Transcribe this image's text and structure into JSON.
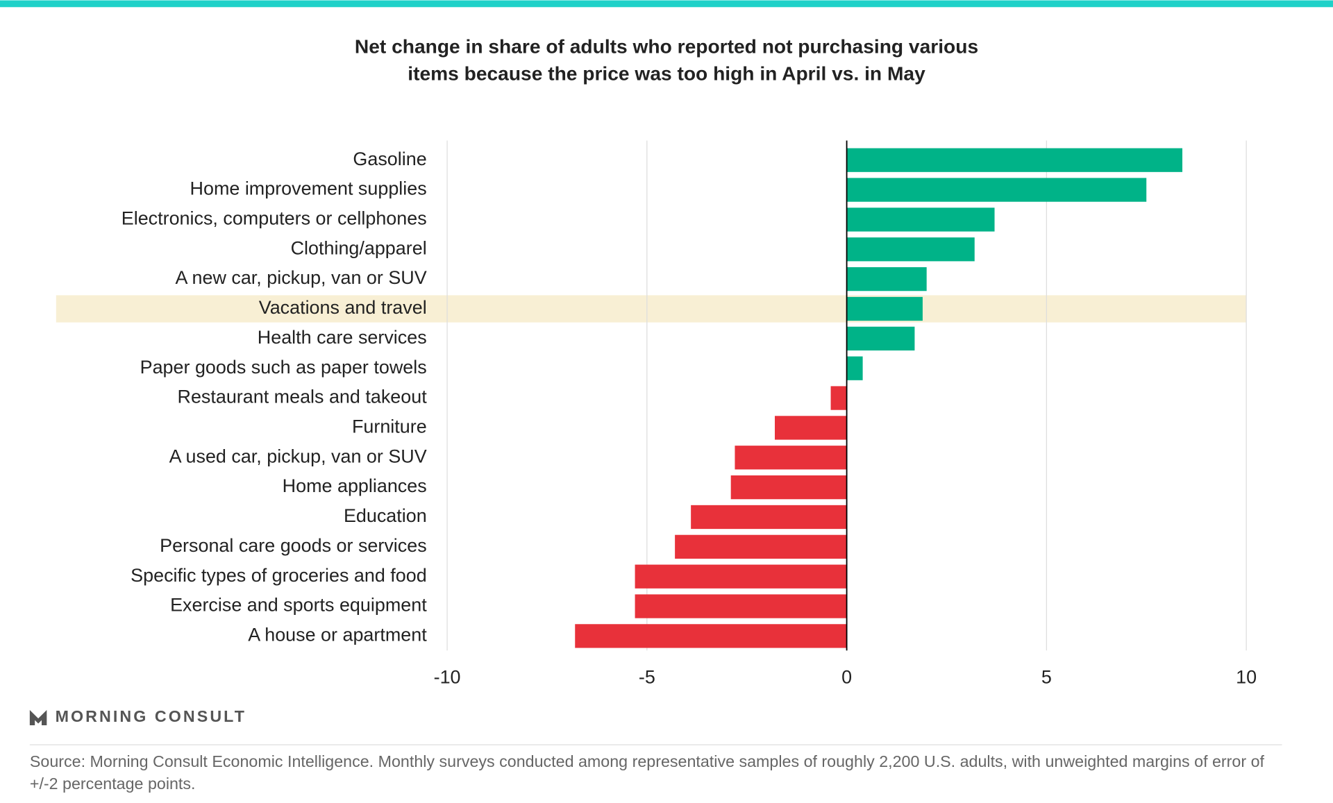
{
  "chart_data": {
    "type": "bar",
    "orientation": "horizontal",
    "title": "Net change in share of adults who reported not purchasing various items because the price was too high in April vs. in May",
    "categories": [
      "Gasoline",
      "Home improvement supplies",
      "Electronics, computers or cellphones",
      "Clothing/apparel",
      "A new car, pickup, van or SUV",
      "Vacations and travel",
      "Health care services",
      "Paper goods such as paper towels",
      "Restaurant meals and takeout",
      "Furniture",
      "A used car, pickup, van or SUV",
      "Home appliances",
      "Education",
      "Personal care goods or services",
      "Specific types of groceries and food",
      "Exercise and sports equipment",
      "A house or apartment"
    ],
    "values": [
      8.4,
      7.5,
      3.7,
      3.2,
      2.0,
      1.9,
      1.7,
      0.4,
      -0.4,
      -1.8,
      -2.8,
      -2.9,
      -3.9,
      -4.3,
      -5.3,
      -5.3,
      -6.8
    ],
    "positive_color": "#00b388",
    "negative_color": "#e8313a",
    "highlight_index": 5,
    "highlight_color": "#f8efd4",
    "xlim": [
      -10,
      10
    ],
    "xticks": [
      -10,
      -5,
      0,
      5,
      10
    ],
    "grid": true,
    "brand": "MORNING CONSULT",
    "source": "Source: Morning Consult Economic Intelligence. Monthly surveys conducted among representative samples of roughly 2,200 U.S. adults, with unweighted margins of error of +/-2 percentage points."
  }
}
